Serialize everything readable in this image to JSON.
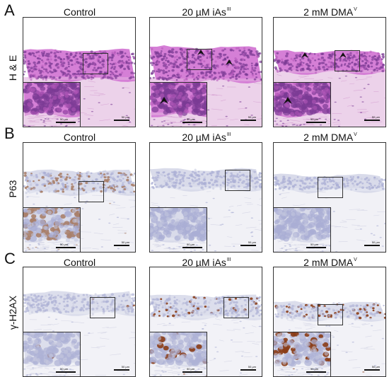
{
  "sections": [
    {
      "letter": "A",
      "stain": "H & E",
      "kind": "he",
      "columns": [
        {
          "condition": "Control",
          "sup": ""
        },
        {
          "condition": "20 µM iAs",
          "sup": "III"
        },
        {
          "condition": "2 mM DMA",
          "sup": "V"
        }
      ]
    },
    {
      "letter": "B",
      "stain": "P63",
      "kind": "p63",
      "columns": [
        {
          "condition": "Control",
          "sup": ""
        },
        {
          "condition": "20 µM iAs",
          "sup": "III"
        },
        {
          "condition": "2 mM DMA",
          "sup": "V"
        }
      ]
    },
    {
      "letter": "C",
      "stain": "γ-H2AX",
      "kind": "h2ax",
      "columns": [
        {
          "condition": "Control",
          "sup": ""
        },
        {
          "condition": "20 µM iAs",
          "sup": "III"
        },
        {
          "condition": "2 mM DMA",
          "sup": "V"
        }
      ]
    }
  ],
  "scale_bar_label": "50 µm",
  "arrowhead_color": "#111111"
}
